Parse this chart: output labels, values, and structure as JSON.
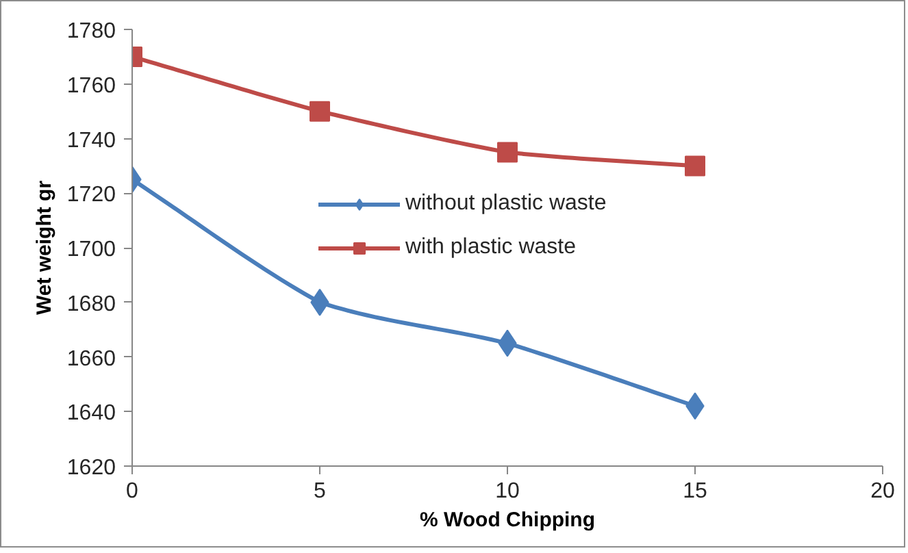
{
  "chart_data": {
    "type": "line",
    "xlabel": "% Wood Chipping",
    "ylabel": "Wet weight gr",
    "x": [
      0,
      5,
      10,
      15
    ],
    "series": [
      {
        "name": "without plastic waste",
        "color": "#4a7ebb",
        "marker": "diamond",
        "values": [
          1725,
          1680,
          1665,
          1642
        ]
      },
      {
        "name": "with plastic waste",
        "color": "#be4b48",
        "marker": "square",
        "values": [
          1770,
          1750,
          1735,
          1730
        ]
      }
    ],
    "xlim": [
      0,
      20
    ],
    "ylim": [
      1620,
      1780
    ],
    "xticks": [
      0,
      5,
      10,
      15,
      20
    ],
    "yticks": [
      1620,
      1640,
      1660,
      1680,
      1700,
      1720,
      1740,
      1760,
      1780
    ],
    "grid": false,
    "legend": "center",
    "line_style": "solid"
  }
}
